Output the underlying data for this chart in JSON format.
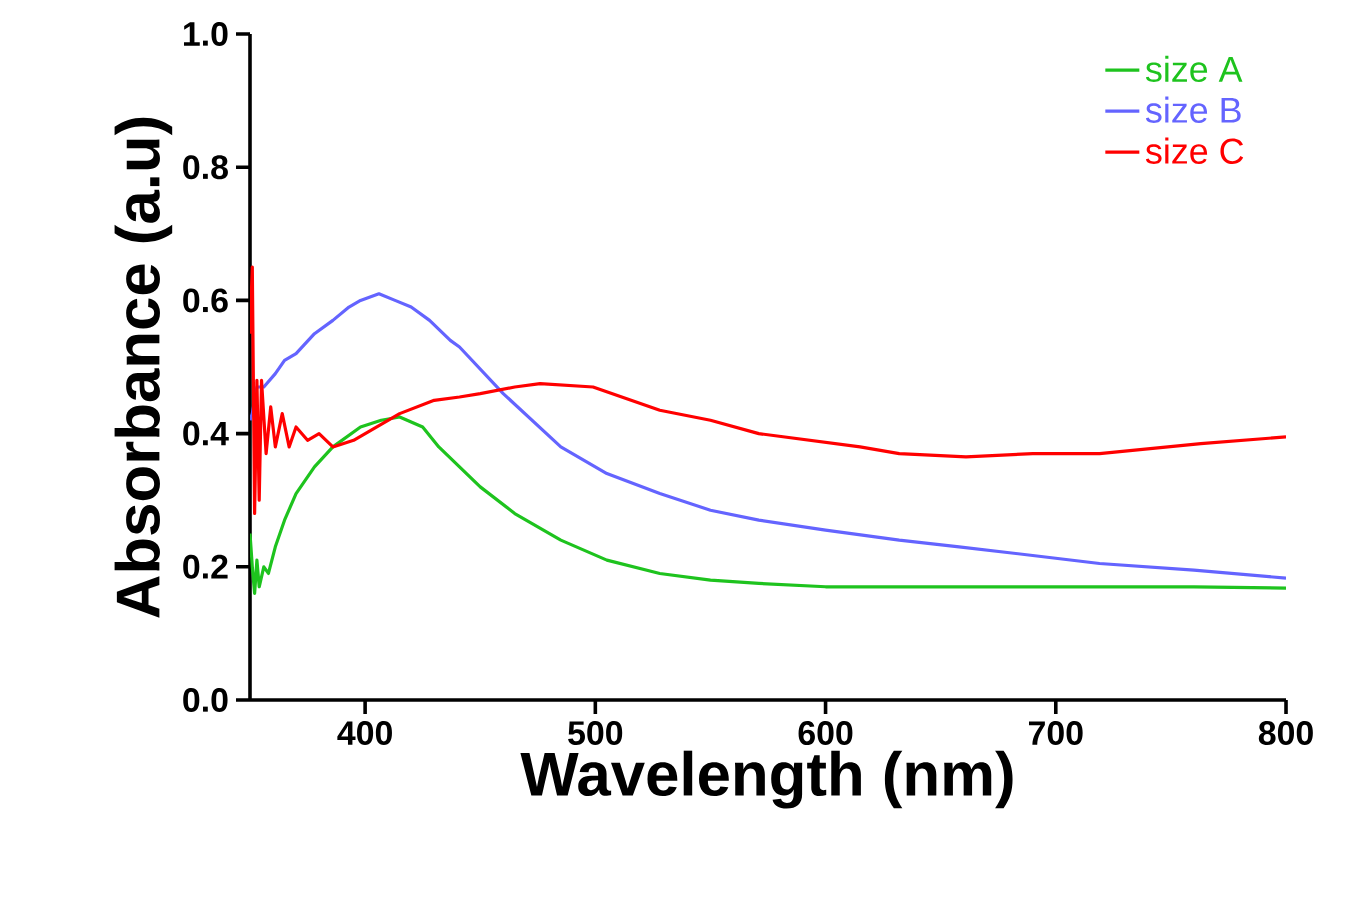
{
  "chart_data": {
    "type": "line",
    "xlabel": "Wavelength (nm)",
    "ylabel": "Absorbance (a.u)",
    "xlim": [
      350,
      800
    ],
    "xticks": [
      400,
      500,
      600,
      700,
      800
    ],
    "ylim": [
      0,
      1
    ],
    "yticks": [
      {
        "value": 0,
        "label": "0.0"
      },
      {
        "value": 0.2,
        "label": "0.2"
      },
      {
        "value": 0.4,
        "label": "0.4"
      },
      {
        "value": 0.6,
        "label": "0.6"
      },
      {
        "value": 0.8,
        "label": "0.8"
      },
      {
        "value": 1,
        "label": "1.0"
      }
    ],
    "grid": false,
    "legend": "top right",
    "marker": "none",
    "line_style": "solid",
    "series": [
      {
        "name": "size A",
        "color": "#1ec31e",
        "x": [
          350,
          351,
          352,
          353,
          354,
          356,
          358,
          361,
          365,
          370,
          378,
          386,
          398,
          407,
          415,
          425,
          432,
          441,
          450,
          465,
          485,
          505,
          528,
          550,
          571,
          600,
          640,
          700,
          760,
          800
        ],
        "values": [
          0.25,
          0.2,
          0.16,
          0.21,
          0.17,
          0.2,
          0.19,
          0.23,
          0.27,
          0.31,
          0.35,
          0.38,
          0.41,
          0.42,
          0.425,
          0.41,
          0.38,
          0.35,
          0.32,
          0.28,
          0.24,
          0.21,
          0.19,
          0.18,
          0.175,
          0.17,
          0.17,
          0.17,
          0.17,
          0.168
        ]
      },
      {
        "name": "size B",
        "color": "#6464ff",
        "x": [
          350,
          351,
          353,
          356,
          361,
          365,
          370,
          378,
          386,
          393,
          398,
          406,
          413,
          420,
          428,
          437,
          441,
          460,
          485,
          505,
          528,
          550,
          571,
          600,
          632,
          658,
          690,
          719,
          760,
          800
        ],
        "values": [
          0.42,
          0.43,
          0.47,
          0.47,
          0.49,
          0.51,
          0.52,
          0.55,
          0.57,
          0.59,
          0.6,
          0.61,
          0.6,
          0.59,
          0.57,
          0.54,
          0.53,
          0.46,
          0.38,
          0.34,
          0.31,
          0.285,
          0.27,
          0.255,
          0.24,
          0.23,
          0.217,
          0.205,
          0.195,
          0.183
        ]
      },
      {
        "name": "size C",
        "color": "#ff0000",
        "x": [
          350,
          351,
          352,
          353,
          354,
          355,
          357,
          359,
          361,
          364,
          367,
          370,
          375,
          380,
          386,
          395,
          405,
          415,
          430,
          441,
          450,
          465,
          476,
          499,
          528,
          550,
          571,
          615,
          632,
          661,
          690,
          719,
          763,
          800
        ],
        "values": [
          0.55,
          0.65,
          0.28,
          0.48,
          0.3,
          0.48,
          0.37,
          0.44,
          0.38,
          0.43,
          0.38,
          0.41,
          0.39,
          0.4,
          0.38,
          0.39,
          0.41,
          0.43,
          0.45,
          0.455,
          0.46,
          0.47,
          0.475,
          0.47,
          0.435,
          0.42,
          0.4,
          0.38,
          0.37,
          0.365,
          0.37,
          0.37,
          0.385,
          0.395
        ]
      }
    ]
  }
}
